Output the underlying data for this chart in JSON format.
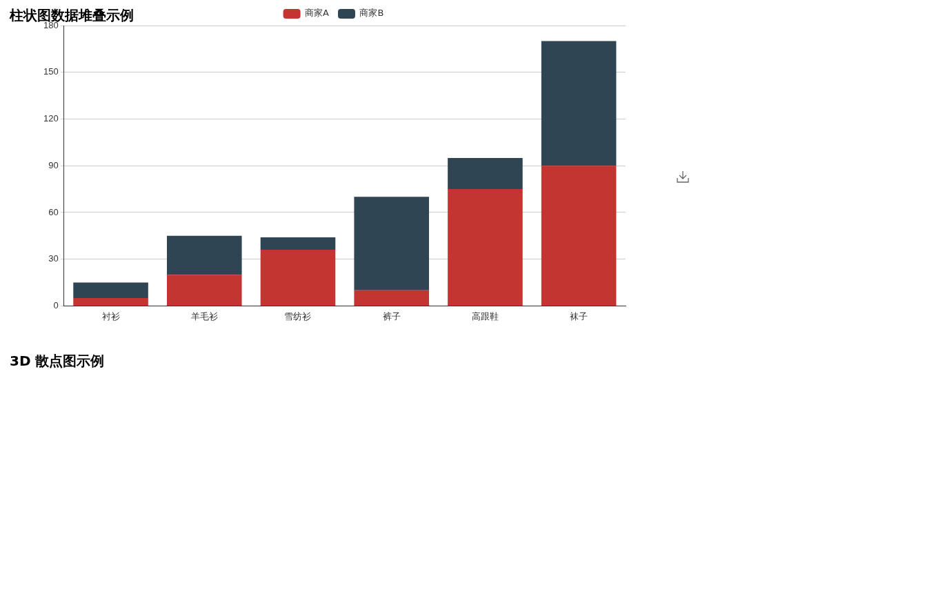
{
  "chart_data": [
    {
      "type": "bar",
      "title": "柱状图数据堆叠示例",
      "categories": [
        "衬衫",
        "羊毛衫",
        "雪纺衫",
        "裤子",
        "高跟鞋",
        "袜子"
      ],
      "stacked": true,
      "series": [
        {
          "name": "商家A",
          "color": "#c23531",
          "values": [
            5,
            20,
            36,
            10,
            75,
            90
          ]
        },
        {
          "name": "商家B",
          "color": "#2f4554",
          "values": [
            10,
            25,
            8,
            60,
            20,
            80
          ]
        }
      ],
      "ylim": [
        0,
        180
      ],
      "yticks": [
        0,
        30,
        60,
        90,
        120,
        150,
        180
      ],
      "grid": "y",
      "legend": "top"
    },
    {
      "type": "other",
      "title": "3D 散点图示例"
    }
  ]
}
